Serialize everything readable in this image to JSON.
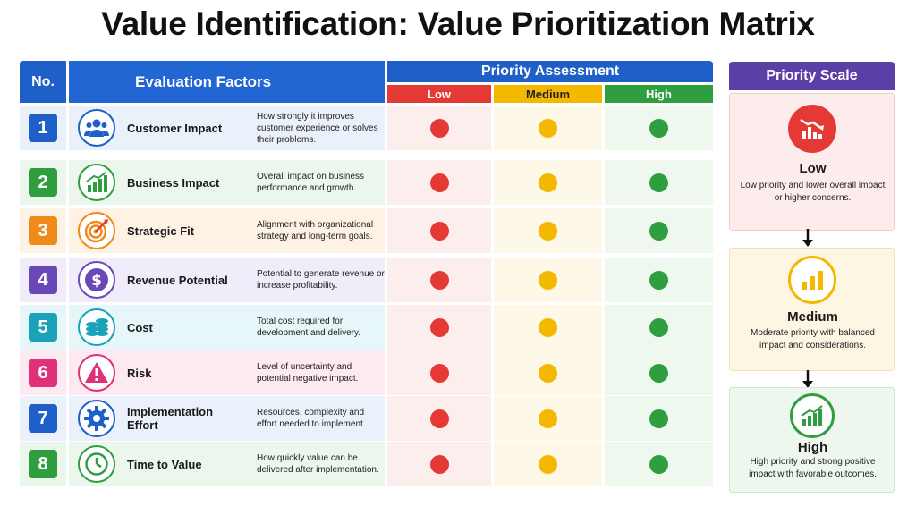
{
  "title": "Value Identification: Value Prioritization Matrix",
  "table": {
    "header_no": "No.",
    "header_factors": "Evaluation Factors",
    "header_priority": "Priority Assessment",
    "levels": {
      "low": "Low",
      "medium": "Medium",
      "high": "High"
    },
    "rows": [
      {
        "no": "1",
        "name": "Customer Impact",
        "desc": "How strongly it improves customer experience or solves their problems.",
        "icon": "customers-icon",
        "color": "#1f5fc8"
      },
      {
        "no": "2",
        "name": "Business Impact",
        "desc": "Overall impact on business performance and growth.",
        "icon": "growth-chart-icon",
        "color": "#2e9e3e"
      },
      {
        "no": "3",
        "name": "Strategic Fit",
        "desc": "Alignment with organizational strategy and long-term goals.",
        "icon": "target-icon",
        "color": "#f08a18"
      },
      {
        "no": "4",
        "name": "Revenue Potential",
        "desc": "Potential to generate revenue or increase profitability.",
        "icon": "dollar-icon",
        "color": "#6a48b8"
      },
      {
        "no": "5",
        "name": "Cost",
        "desc": "Total cost required for development and delivery.",
        "icon": "coins-icon",
        "color": "#1aa3b8"
      },
      {
        "no": "6",
        "name": "Risk",
        "desc": "Level of uncertainty and potential negative impact.",
        "icon": "warning-icon",
        "color": "#e0307a"
      },
      {
        "no": "7",
        "name": "Implementation Effort",
        "desc": "Resources, complexity and effort needed to implement.",
        "icon": "gear-icon",
        "color": "#1f5fc8"
      },
      {
        "no": "8",
        "name": "Time to Value",
        "desc": "How quickly value can be delivered after implementation.",
        "icon": "clock-icon",
        "color": "#2e9e3e"
      }
    ]
  },
  "colors": {
    "low": "#e53935",
    "medium": "#f5b800",
    "high": "#2e9e3e"
  },
  "scale": {
    "header": "Priority Scale",
    "low": {
      "label": "Low",
      "desc": "Low priority and lower overall impact or higher concerns."
    },
    "medium": {
      "label": "Medium",
      "desc": "Moderate priority with balanced impact and considerations."
    },
    "high": {
      "label": "High",
      "desc": "High priority and strong positive impact with favorable outcomes."
    }
  }
}
